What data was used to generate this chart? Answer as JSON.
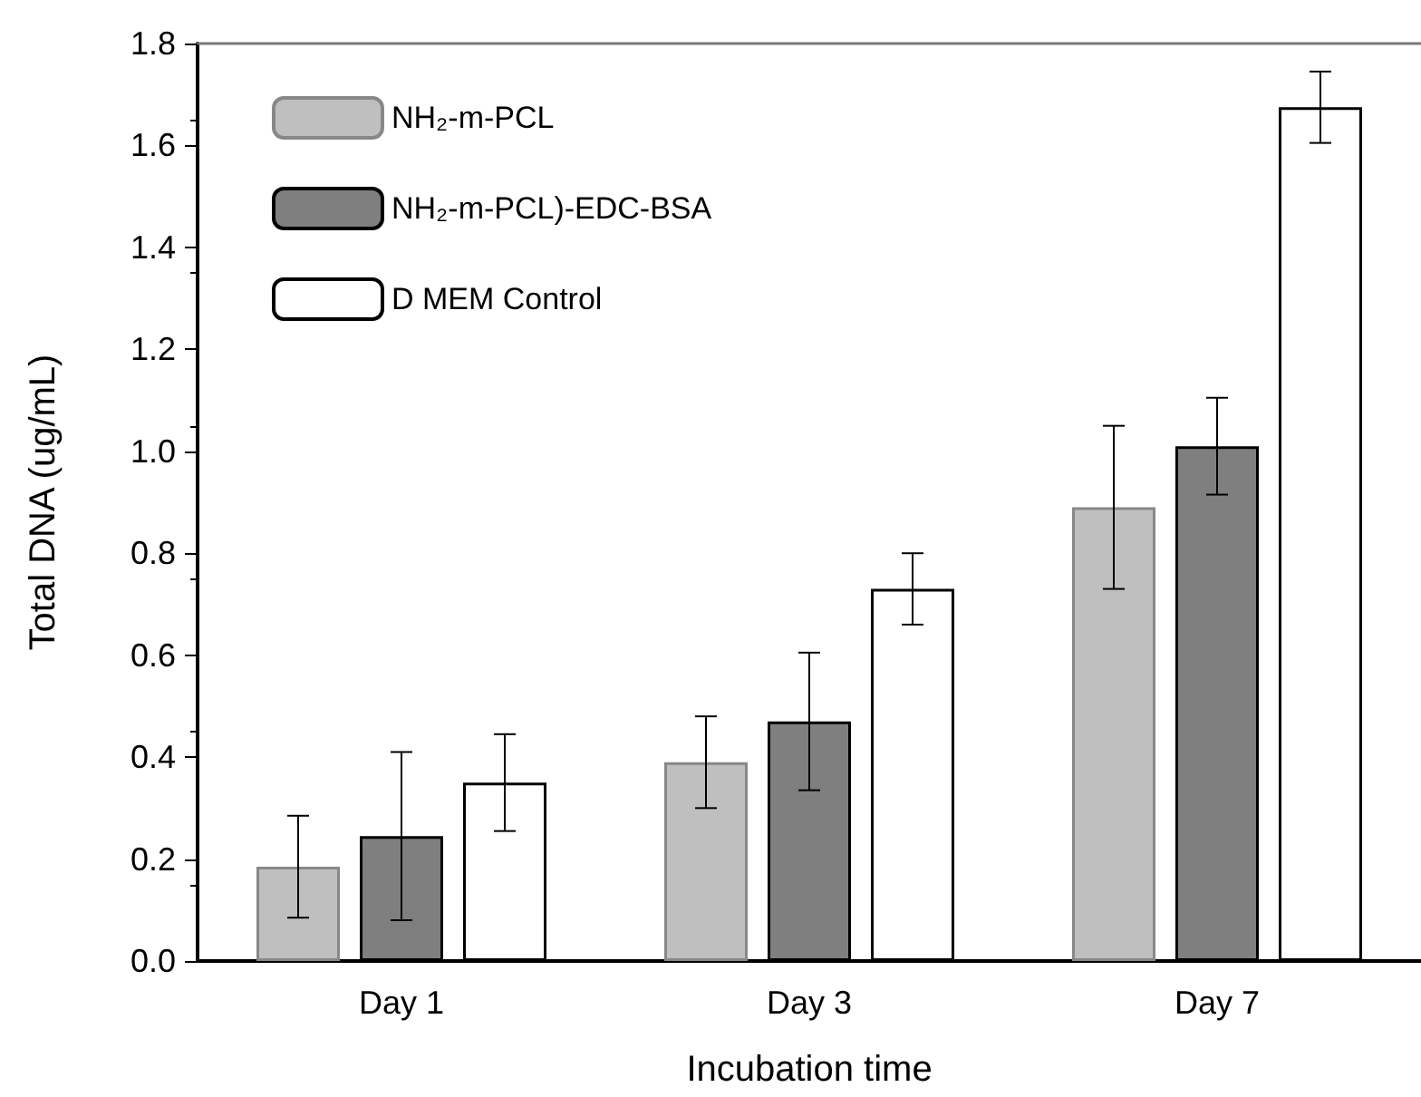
{
  "chart_data": {
    "type": "bar",
    "xlabel": "Incubation time",
    "ylabel": "Total DNA (ug/mL)",
    "categories": [
      "Day 1",
      "Day 3",
      "Day 7"
    ],
    "series": [
      {
        "name": "NH₂-m-PCL",
        "color": "#bfbfbf",
        "values": [
          0.185,
          0.39,
          0.89
        ],
        "errors": [
          0.1,
          0.09,
          0.16
        ]
      },
      {
        "name": "NH₂-m-PCL)-EDC-BSA",
        "color": "#7f7f7f",
        "values": [
          0.245,
          0.47,
          1.01
        ],
        "errors": [
          0.165,
          0.135,
          0.095
        ]
      },
      {
        "name": "D MEM Control",
        "color": "#ffffff",
        "values": [
          0.35,
          0.73,
          1.675
        ],
        "errors": [
          0.095,
          0.07,
          0.07
        ]
      }
    ],
    "ylim": [
      0,
      1.8
    ],
    "yticks": [
      {
        "value": 0,
        "label": "0.0"
      },
      {
        "value": 0.2,
        "label": "0.2"
      },
      {
        "value": 0.4,
        "label": "0.4"
      },
      {
        "value": 0.6,
        "label": "0.6"
      },
      {
        "value": 0.8,
        "label": "0.8"
      },
      {
        "value": 1,
        "label": "1.0"
      },
      {
        "value": 1.2,
        "label": "1.2"
      },
      {
        "value": 1.4,
        "label": "1.4"
      },
      {
        "value": 1.6,
        "label": "1.6"
      },
      {
        "value": 1.8,
        "label": "1.8"
      }
    ],
    "grid": false,
    "legend": "top left"
  }
}
